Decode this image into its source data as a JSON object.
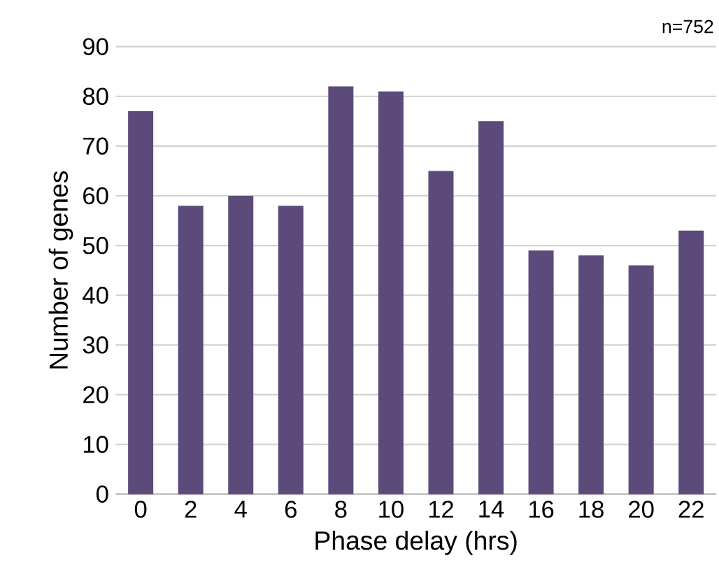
{
  "chart_data": {
    "type": "bar",
    "xlabel": "Phase delay (hrs)",
    "ylabel": "Number of genes",
    "categories": [
      "0",
      "2",
      "4",
      "6",
      "8",
      "10",
      "12",
      "14",
      "16",
      "18",
      "20",
      "22"
    ],
    "values": [
      77,
      58,
      60,
      58,
      82,
      81,
      65,
      75,
      49,
      48,
      46,
      53
    ],
    "color": "#5b4a7a",
    "ylim": [
      0,
      90
    ],
    "yticks": [
      0,
      10,
      20,
      30,
      40,
      50,
      60,
      70,
      80,
      90
    ],
    "grid": "y",
    "annotations": [
      "n=752"
    ]
  }
}
